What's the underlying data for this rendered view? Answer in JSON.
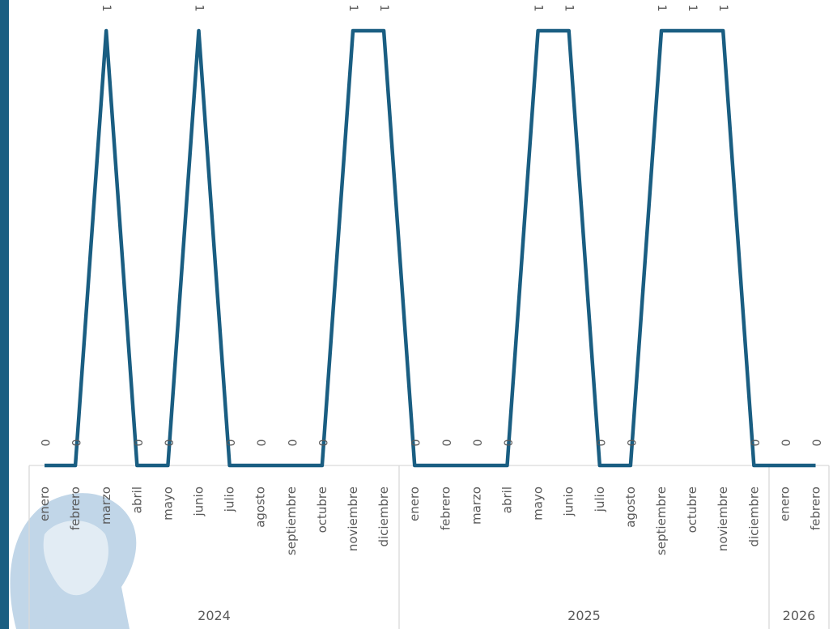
{
  "colors": {
    "line": "#1a5e82",
    "axis": "#d9d9d9",
    "text": "#595959",
    "left_strip": "#1a5e82",
    "watermark": "#8fb6d6"
  },
  "chart_data": {
    "type": "line",
    "x": [
      {
        "month": "enero",
        "year": "2024"
      },
      {
        "month": "febrero",
        "year": "2024"
      },
      {
        "month": "marzo",
        "year": "2024"
      },
      {
        "month": "abril",
        "year": "2024"
      },
      {
        "month": "mayo",
        "year": "2024"
      },
      {
        "month": "junio",
        "year": "2024"
      },
      {
        "month": "julio",
        "year": "2024"
      },
      {
        "month": "agosto",
        "year": "2024"
      },
      {
        "month": "septiembre",
        "year": "2024"
      },
      {
        "month": "octubre",
        "year": "2024"
      },
      {
        "month": "noviembre",
        "year": "2024"
      },
      {
        "month": "diciembre",
        "year": "2024"
      },
      {
        "month": "enero",
        "year": "2025"
      },
      {
        "month": "febrero",
        "year": "2025"
      },
      {
        "month": "marzo",
        "year": "2025"
      },
      {
        "month": "abril",
        "year": "2025"
      },
      {
        "month": "mayo",
        "year": "2025"
      },
      {
        "month": "junio",
        "year": "2025"
      },
      {
        "month": "julio",
        "year": "2025"
      },
      {
        "month": "agosto",
        "year": "2025"
      },
      {
        "month": "septiembre",
        "year": "2025"
      },
      {
        "month": "octubre",
        "year": "2025"
      },
      {
        "month": "noviembre",
        "year": "2025"
      },
      {
        "month": "diciembre",
        "year": "2025"
      },
      {
        "month": "enero",
        "year": "2026"
      },
      {
        "month": "febrero",
        "year": "2026"
      }
    ],
    "years": [
      "2024",
      "2025",
      "2026"
    ],
    "series": [
      {
        "values": [
          0,
          0,
          1,
          0,
          0,
          1,
          0,
          0,
          0,
          0,
          1,
          1,
          0,
          0,
          0,
          0,
          1,
          1,
          0,
          0,
          1,
          1,
          1,
          0,
          0,
          0
        ]
      }
    ],
    "data_labels": true,
    "ylim": [
      0,
      1
    ],
    "grid": false,
    "legend": "none",
    "title": "",
    "xlabel": "",
    "ylabel": ""
  }
}
